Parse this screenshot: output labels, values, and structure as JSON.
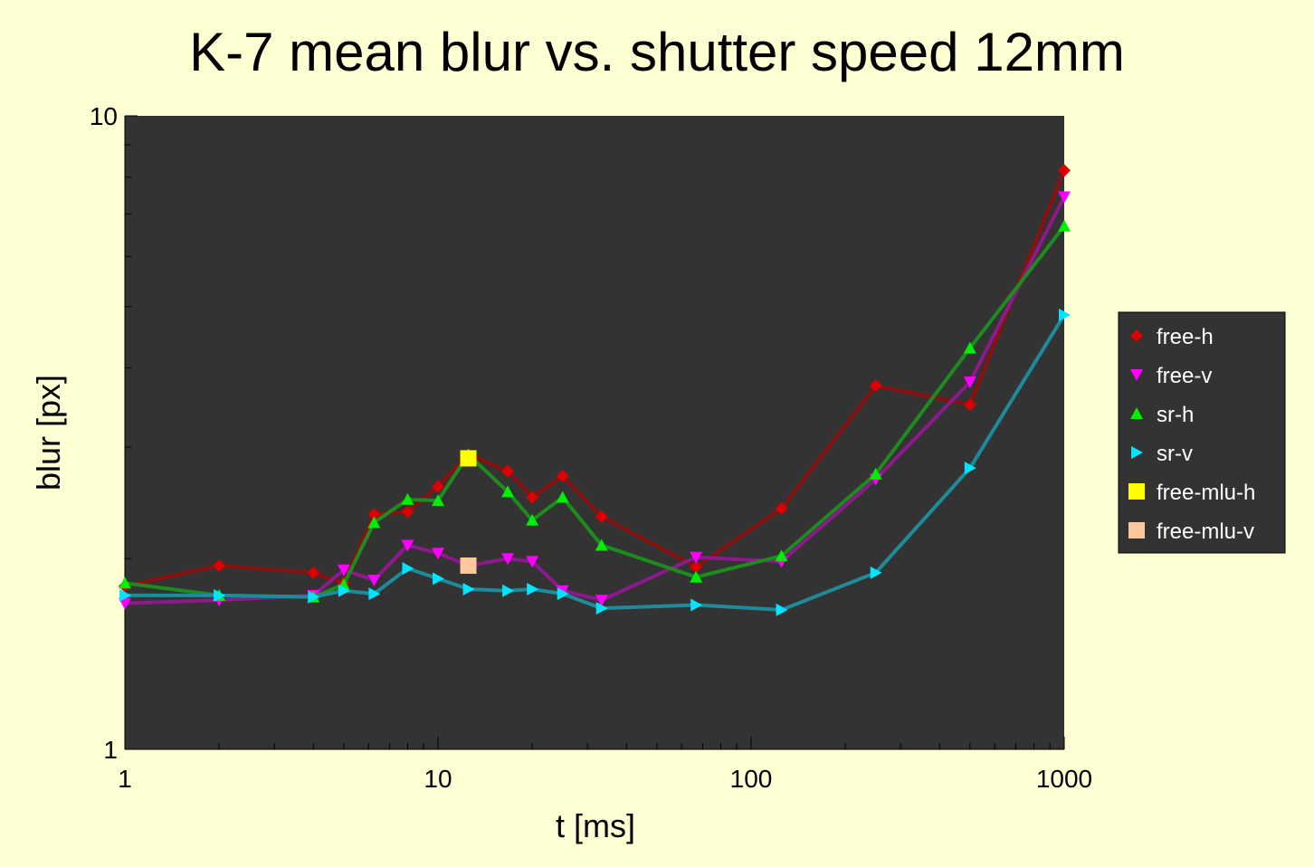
{
  "chart_data": {
    "type": "line",
    "title": "K-7 mean blur vs. shutter speed 12mm",
    "xlabel": "t [ms]",
    "ylabel": "blur [px]",
    "xscale": "log",
    "yscale": "log",
    "xlim": [
      1,
      1000
    ],
    "ylim": [
      1,
      10
    ],
    "x_ticks": [
      "1",
      "10",
      "100",
      "1000"
    ],
    "y_ticks": [
      "1",
      "10"
    ],
    "grid": false,
    "legend_position": "right",
    "plot_background": "#333333",
    "series": [
      {
        "name": "free-h",
        "color": "#dd0000",
        "line_color": "#8b1010",
        "marker": "diamond",
        "points": [
          [
            1,
            1.81
          ],
          [
            2,
            1.95
          ],
          [
            4,
            1.9
          ],
          [
            5,
            1.83
          ],
          [
            6.25,
            2.35
          ],
          [
            8,
            2.37
          ],
          [
            10,
            2.6
          ],
          [
            12.5,
            2.92
          ],
          [
            16.7,
            2.75
          ],
          [
            20,
            2.5
          ],
          [
            25,
            2.7
          ],
          [
            33.3,
            2.33
          ],
          [
            66.7,
            1.94
          ],
          [
            125,
            2.4
          ],
          [
            250,
            3.75
          ],
          [
            500,
            3.5
          ],
          [
            1000,
            8.2
          ]
        ]
      },
      {
        "name": "free-v",
        "color": "#ff00ff",
        "line_color": "#8b1a8b",
        "marker": "triangle-down",
        "points": [
          [
            1,
            1.7
          ],
          [
            2,
            1.72
          ],
          [
            4,
            1.75
          ],
          [
            5,
            1.92
          ],
          [
            6.25,
            1.85
          ],
          [
            8,
            2.1
          ],
          [
            10,
            2.04
          ],
          [
            12.5,
            1.95
          ],
          [
            16.7,
            2.0
          ],
          [
            20,
            1.98
          ],
          [
            25,
            1.78
          ],
          [
            33.3,
            1.72
          ],
          [
            66.7,
            2.01
          ],
          [
            125,
            1.98
          ],
          [
            250,
            2.67
          ],
          [
            500,
            3.8
          ],
          [
            1000,
            7.45
          ]
        ]
      },
      {
        "name": "sr-h",
        "color": "#00ee00",
        "line_color": "#1e8b1e",
        "marker": "triangle-up",
        "points": [
          [
            1,
            1.83
          ],
          [
            2,
            1.75
          ],
          [
            4,
            1.74
          ],
          [
            5,
            1.82
          ],
          [
            6.25,
            2.28
          ],
          [
            8,
            2.48
          ],
          [
            10,
            2.47
          ],
          [
            12.5,
            2.92
          ],
          [
            16.7,
            2.55
          ],
          [
            20,
            2.3
          ],
          [
            25,
            2.5
          ],
          [
            33.3,
            2.1
          ],
          [
            66.7,
            1.87
          ],
          [
            125,
            2.02
          ],
          [
            250,
            2.72
          ],
          [
            500,
            4.3
          ],
          [
            1000,
            6.7
          ]
        ]
      },
      {
        "name": "sr-v",
        "color": "#00e5ff",
        "line_color": "#1e8b9b",
        "marker": "triangle-right",
        "points": [
          [
            1,
            1.75
          ],
          [
            2,
            1.75
          ],
          [
            4,
            1.74
          ],
          [
            5,
            1.78
          ],
          [
            6.25,
            1.76
          ],
          [
            8,
            1.93
          ],
          [
            10,
            1.86
          ],
          [
            12.5,
            1.79
          ],
          [
            16.7,
            1.78
          ],
          [
            20,
            1.79
          ],
          [
            25,
            1.76
          ],
          [
            33.3,
            1.67
          ],
          [
            66.7,
            1.69
          ],
          [
            125,
            1.66
          ],
          [
            250,
            1.9
          ],
          [
            500,
            2.78
          ],
          [
            1000,
            4.85
          ]
        ]
      },
      {
        "name": "free-mlu-h",
        "color": "#ffff00",
        "line_color": null,
        "marker": "square",
        "points": [
          [
            12.5,
            2.88
          ]
        ]
      },
      {
        "name": "free-mlu-v",
        "color": "#ffc79a",
        "line_color": null,
        "marker": "square",
        "points": [
          [
            12.5,
            1.95
          ]
        ]
      }
    ]
  }
}
